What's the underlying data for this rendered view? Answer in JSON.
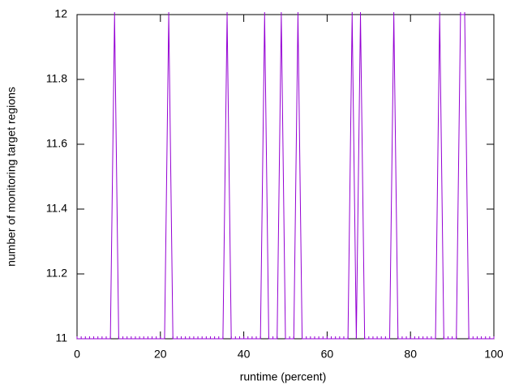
{
  "chart_data": {
    "type": "line",
    "xlabel": "runtime (percent)",
    "ylabel": "number of monitoring target regions",
    "x": [
      0,
      1,
      2,
      3,
      4,
      5,
      6,
      7,
      8,
      9,
      10,
      11,
      12,
      13,
      14,
      15,
      16,
      17,
      18,
      19,
      20,
      21,
      22,
      23,
      24,
      25,
      26,
      27,
      28,
      29,
      30,
      31,
      32,
      33,
      34,
      35,
      36,
      37,
      38,
      39,
      40,
      41,
      42,
      43,
      44,
      45,
      46,
      47,
      48,
      49,
      50,
      51,
      52,
      53,
      54,
      55,
      56,
      57,
      58,
      59,
      60,
      61,
      62,
      63,
      64,
      65,
      66,
      67,
      68,
      69,
      70,
      71,
      72,
      73,
      74,
      75,
      76,
      77,
      78,
      79,
      80,
      81,
      82,
      83,
      84,
      85,
      86,
      87,
      88,
      89,
      90,
      91,
      92,
      93,
      94,
      95,
      96,
      97,
      98,
      99,
      100
    ],
    "values": [
      11,
      11,
      11,
      11,
      11,
      11,
      11,
      11,
      11,
      12,
      11,
      11,
      11,
      11,
      11,
      11,
      11,
      11,
      11,
      11,
      11,
      11,
      12,
      11,
      11,
      11,
      11,
      11,
      11,
      11,
      11,
      11,
      11,
      11,
      11,
      11,
      12,
      11,
      11,
      11,
      11,
      11,
      11,
      11,
      11,
      12,
      11,
      11,
      11,
      12,
      11,
      11,
      11,
      12,
      11,
      11,
      11,
      11,
      11,
      11,
      11,
      11,
      11,
      11,
      11,
      11,
      12,
      11,
      12,
      11,
      11,
      11,
      11,
      11,
      11,
      11,
      12,
      11,
      11,
      11,
      11,
      11,
      11,
      11,
      11,
      11,
      11,
      12,
      11,
      11,
      11,
      11,
      12,
      12,
      11,
      11,
      11,
      11,
      11,
      11,
      11
    ],
    "color": "#9400d3",
    "xlim": [
      0,
      100
    ],
    "xticks": [
      0,
      20,
      40,
      60,
      80,
      100
    ],
    "ylim": [
      11,
      12
    ],
    "yticks": [
      11,
      11.2,
      11.4,
      11.6,
      11.8,
      12
    ]
  }
}
